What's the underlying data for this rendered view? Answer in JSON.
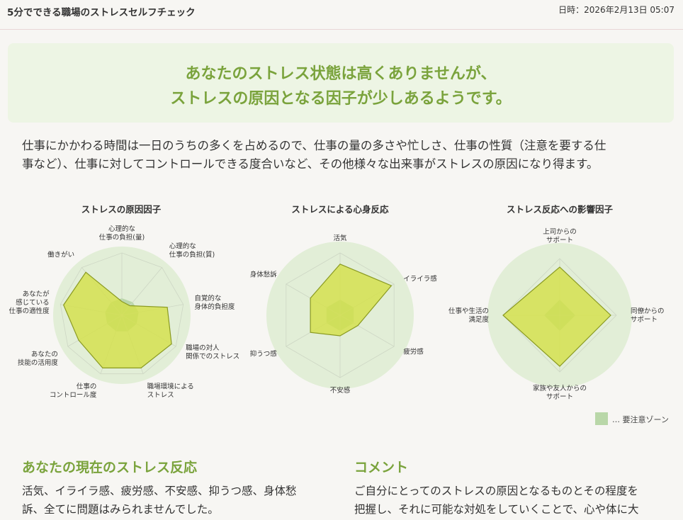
{
  "header": {
    "app_title": "5分でできる職場のストレスセルフチェック",
    "datetime": "日時：2026年2月13日 05:07"
  },
  "result": {
    "line1": "あなたのストレス状態は高くありませんが、",
    "line2": "ストレスの原因となる因子が少しあるようです。"
  },
  "intro": {
    "line1": "仕事にかかわる時間は一日のうちの多くを占めるので、仕事の量の多さや忙しさ、仕事の性質（注意を要する仕",
    "line2": "事など）、仕事に対してコントロールできる度合いなど、その他様々な出来事がストレスの原因になり得ます。"
  },
  "charts": {
    "causes": {
      "title": "ストレスの原因因子",
      "axes": [
        [
          "心理的な",
          "仕事の負担(量)"
        ],
        [
          "心理的な",
          "仕事の負担(質)"
        ],
        [
          "自覚的な",
          "身体的負担度"
        ],
        [
          "職場の対人",
          "関係でのストレス"
        ],
        [
          "職場環境による",
          "ストレス"
        ],
        [
          "仕事の",
          "コントロール度"
        ],
        [
          "あなたの",
          "技能の活用度"
        ],
        [
          "あなたが",
          "感じている",
          "仕事の適性度"
        ],
        [
          "働きがい"
        ]
      ],
      "values": [
        0.22,
        0.2,
        0.74,
        0.92,
        0.9,
        0.9,
        0.8,
        0.95,
        0.9
      ]
    },
    "reactions": {
      "title": "ストレスによる心身反応",
      "axes": [
        [
          "活気"
        ],
        [
          "イライラ感"
        ],
        [
          "疲労感"
        ],
        [
          "不安感"
        ],
        [
          "抑うつ感"
        ],
        [
          "身体愁訴"
        ]
      ],
      "values": [
        0.82,
        0.95,
        0.33,
        0.33,
        0.55,
        0.55
      ]
    },
    "influences": {
      "title": "ストレス反応への影響因子",
      "axes": [
        [
          "上司からの",
          "サポート"
        ],
        [
          "同僚からの",
          "サポート"
        ],
        [
          "家族や友人からの",
          "サポート"
        ],
        [
          "仕事や生活の",
          "満足度"
        ]
      ],
      "values": [
        0.85,
        0.9,
        0.9,
        1.0
      ]
    },
    "legend": "… 要注意ゾーン",
    "colors": {
      "plot_bg": "#e2eed7",
      "caution": "#b9d7a8",
      "fill": "#d4e04a",
      "stroke": "#8a9a22",
      "grid": "#cdd6c4"
    }
  },
  "reaction_section": {
    "heading": "あなたの現在のストレス反応",
    "line1": "活気、イライラ感、疲労感、不安感、抑うつ感、身体愁",
    "line2": "訴、全てに問題はみられませんでした。"
  },
  "comment_section": {
    "heading": "コメント",
    "line1": "ご自分にとってのストレスの原因となるものとその程度を",
    "line2": "把握し、それに可能な対処をしていくことで、心や体に大"
  }
}
